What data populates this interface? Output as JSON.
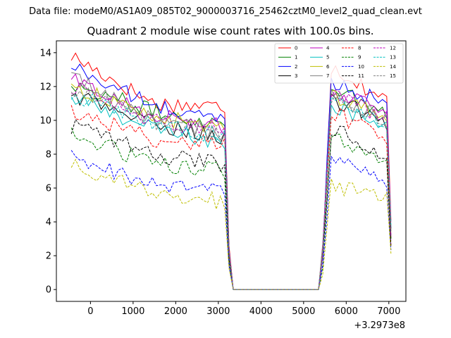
{
  "header": {
    "file_label": "Data file: modeM0/AS1A09_085T02_9000003716_25462cztM0_level2_quad_clean.evt"
  },
  "chart_data": {
    "type": "line",
    "title": "Quadrant 2 module wise count rates with 100.0s bins.",
    "xlabel": "",
    "ylabel": "",
    "x_offset_label": "+3.2973e8",
    "xlim": [
      -800,
      7400
    ],
    "ylim": [
      -0.7,
      14.7
    ],
    "xticks": [
      0,
      1000,
      2000,
      3000,
      4000,
      5000,
      6000,
      7000
    ],
    "xtick_labels": [
      "0",
      "1000",
      "2000",
      "3000",
      "4000",
      "5000",
      "6000",
      "7000"
    ],
    "yticks": [
      0,
      2,
      4,
      6,
      8,
      10,
      12,
      14
    ],
    "ytick_labels": [
      "0",
      "2",
      "4",
      "6",
      "8",
      "10",
      "12",
      "14"
    ],
    "grid": false,
    "legend_position": "top-right",
    "gap": {
      "start": 3150,
      "end": 5400,
      "low_value": 0.0,
      "rise_end": 5650
    },
    "series": [
      {
        "name": "0",
        "color": "#ff0000",
        "style": "solid",
        "start": 13.8,
        "mid": 11.0,
        "before_gap": 10.8,
        "after_gap": 13.2,
        "end": 11.0
      },
      {
        "name": "1",
        "color": "#008000",
        "style": "solid",
        "start": 12.2,
        "mid": 10.5,
        "before_gap": 9.8,
        "after_gap": 12.0,
        "end": 10.3
      },
      {
        "name": "2",
        "color": "#0000ff",
        "style": "solid",
        "start": 13.2,
        "mid": 10.8,
        "before_gap": 10.0,
        "after_gap": 12.4,
        "end": 10.8
      },
      {
        "name": "3",
        "color": "#000000",
        "style": "solid",
        "start": 11.5,
        "mid": 9.8,
        "before_gap": 9.0,
        "after_gap": 11.2,
        "end": 9.8
      },
      {
        "name": "4",
        "color": "#bf00bf",
        "style": "solid",
        "start": 12.4,
        "mid": 10.3,
        "before_gap": 9.6,
        "after_gap": 11.8,
        "end": 10.3
      },
      {
        "name": "5",
        "color": "#00bfbf",
        "style": "solid",
        "start": 11.3,
        "mid": 9.5,
        "before_gap": 8.6,
        "after_gap": 11.0,
        "end": 9.4
      },
      {
        "name": "6",
        "color": "#bfbf00",
        "style": "solid",
        "start": 12.0,
        "mid": 10.2,
        "before_gap": 9.5,
        "after_gap": 11.6,
        "end": 10.0
      },
      {
        "name": "7",
        "color": "#808080",
        "style": "solid",
        "start": 12.6,
        "mid": 10.0,
        "before_gap": 9.2,
        "after_gap": 11.4,
        "end": 9.9
      },
      {
        "name": "8",
        "color": "#ff0000",
        "style": "dashed",
        "start": 10.6,
        "mid": 8.9,
        "before_gap": 8.6,
        "after_gap": 10.5,
        "end": 8.8
      },
      {
        "name": "9",
        "color": "#008000",
        "style": "dashed",
        "start": 9.2,
        "mid": 7.4,
        "before_gap": 7.0,
        "after_gap": 9.0,
        "end": 7.4
      },
      {
        "name": "10",
        "color": "#0000ff",
        "style": "dashed",
        "start": 7.8,
        "mid": 6.2,
        "before_gap": 5.8,
        "after_gap": 7.6,
        "end": 6.4
      },
      {
        "name": "11",
        "color": "#000000",
        "style": "dashed",
        "start": 9.7,
        "mid": 8.0,
        "before_gap": 7.4,
        "after_gap": 9.6,
        "end": 7.6
      },
      {
        "name": "12",
        "color": "#bf00bf",
        "style": "dashed",
        "start": 12.0,
        "mid": 10.0,
        "before_gap": 9.4,
        "after_gap": 11.6,
        "end": 10.0
      },
      {
        "name": "13",
        "color": "#00bfbf",
        "style": "dashed",
        "start": 11.6,
        "mid": 9.8,
        "before_gap": 9.0,
        "after_gap": 11.3,
        "end": 9.6
      },
      {
        "name": "14",
        "color": "#bfbf00",
        "style": "dashed",
        "start": 7.5,
        "mid": 5.6,
        "before_gap": 5.2,
        "after_gap": 6.2,
        "end": 5.4
      },
      {
        "name": "15",
        "color": "#808080",
        "style": "dashed",
        "start": 11.9,
        "mid": 9.9,
        "before_gap": 9.2,
        "after_gap": 11.4,
        "end": 9.8
      }
    ]
  }
}
